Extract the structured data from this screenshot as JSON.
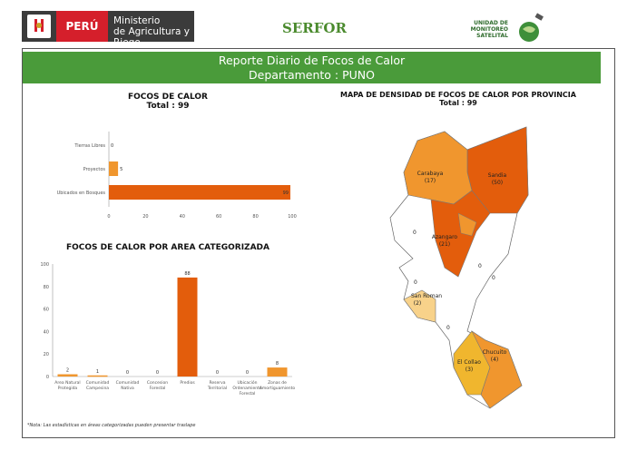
{
  "header": {
    "country": "PERÚ",
    "ministry_line1": "Ministerio",
    "ministry_line2": "de Agricultura y Riego",
    "serfor": "SERFOR",
    "unidad": "UNIDAD DE MONITOREO SATELITAL"
  },
  "banner": {
    "title": "Reporte Diario de Focos de Calor",
    "subtitle": "Departamento : PUNO"
  },
  "colors": {
    "green": "#4a9b3a",
    "orange_dark": "#e35d0c",
    "orange": "#f0962e",
    "light": "#f8d28a",
    "yellow": "#f0b62e"
  },
  "chart_data": [
    {
      "type": "bar",
      "orientation": "horizontal",
      "title": "FOCOS DE CALOR",
      "subtitle": "Total : 99",
      "categories": [
        "Tierras Libres",
        "Proyectos",
        "Ubicados en Bosques"
      ],
      "values": [
        0,
        5,
        99
      ],
      "xlim": [
        0,
        100
      ],
      "xticks": [
        0,
        20,
        40,
        60,
        80,
        100
      ]
    },
    {
      "type": "bar",
      "title": "FOCOS DE CALOR POR AREA CATEGORIZADA",
      "categories": [
        "Area Natural Protegida",
        "Comunidad Campesina",
        "Comunidad Nativa",
        "Concesion Forestal",
        "Predios",
        "Reserva Territorial",
        "Ubicación Ordenamiento Forestal",
        "Zonas de Amortiguamiento"
      ],
      "values": [
        2,
        1,
        0,
        0,
        88,
        0,
        0,
        8
      ],
      "ylim": [
        0,
        100
      ],
      "yticks": [
        0,
        20,
        40,
        60,
        80,
        100
      ]
    }
  ],
  "map": {
    "title": "MAPA DE DENSIDAD DE FOCOS DE CALOR POR PROVINCIA",
    "subtitle": "Total : 99",
    "labels": [
      {
        "name": "Carabaya",
        "value": "(17)"
      },
      {
        "name": "Sandia",
        "value": "(50)"
      },
      {
        "name": "Azangaro",
        "value": "(21)"
      },
      {
        "name": "San Roman",
        "value": "(2)"
      },
      {
        "name": "El Collao",
        "value": "(3)"
      },
      {
        "name": "Chucuito",
        "value": "(4)"
      }
    ],
    "zeros": [
      "0",
      "0",
      "0",
      "0",
      "0"
    ]
  },
  "footnote": "*Nota: Las estadísticas en áreas categorizadas pueden presentar traslape"
}
